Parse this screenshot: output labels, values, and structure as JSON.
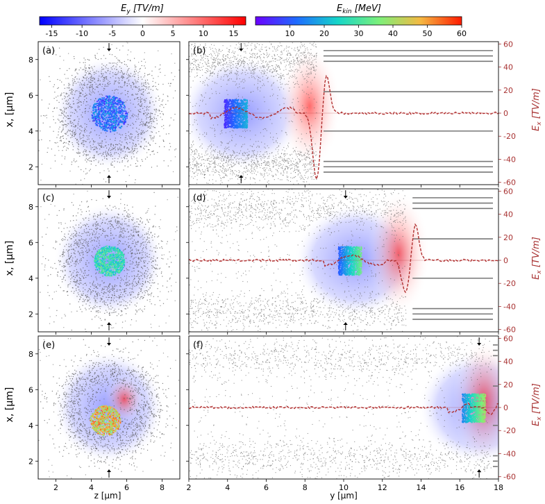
{
  "colorbars": {
    "ey": {
      "label": "E_y [TV/m]",
      "label_main": "E",
      "label_sub": "y",
      "label_unit": " [TV/m]",
      "ticks": [
        -15,
        -10,
        -5,
        0,
        5,
        10,
        15
      ],
      "range": [
        -17,
        17
      ],
      "colors": [
        "#0000ff",
        "#ffffff",
        "#ff0000"
      ]
    },
    "ekin": {
      "label": "E_kin [MeV]",
      "label_main": "E",
      "label_sub": "kin",
      "label_unit": " [MeV]",
      "ticks": [
        10,
        20,
        30,
        40,
        50,
        60
      ],
      "range": [
        0,
        60
      ],
      "colors": [
        "#6a00ff",
        "#1e6cff",
        "#16d6c8",
        "#7cf07a",
        "#f5b942",
        "#ff1a00"
      ]
    }
  },
  "axes_labels": {
    "left_y": "x, [μm]",
    "left_x": "z [μm]",
    "right_x": "y [μm]",
    "right_y2_main": "E",
    "right_y2_sub": "x",
    "right_y2_unit": " [TV/m]"
  },
  "chart_data": [
    {
      "panel": "a",
      "label": "(a)",
      "type": "scatter",
      "xlim": [
        1,
        9
      ],
      "ylim": [
        1,
        9
      ],
      "xticks": [
        2,
        4,
        6,
        8
      ],
      "yticks": [
        2,
        4,
        6,
        8
      ],
      "ring_center": [
        5,
        5
      ],
      "core_energy_MeV": [
        5,
        20
      ],
      "arrow_x": 5
    },
    {
      "panel": "b",
      "label": "(b)",
      "type": "line",
      "xlim": [
        2,
        18
      ],
      "ylim": [
        1,
        9
      ],
      "y2lim": [
        -62,
        62
      ],
      "xticks": [
        2,
        4,
        6,
        8,
        10,
        12,
        14,
        16,
        18
      ],
      "yticks": [
        2,
        4,
        6,
        8
      ],
      "y2ticks": [
        -60,
        -40,
        -20,
        0,
        20,
        40,
        60
      ],
      "arrow_y": 4.7,
      "bunch_y": [
        3.8,
        5.0
      ],
      "wave_y": 8.6,
      "ex_peak": [
        -58,
        35
      ]
    },
    {
      "panel": "c",
      "label": "(c)",
      "type": "scatter",
      "xlim": [
        1,
        9
      ],
      "ylim": [
        1,
        9
      ],
      "xticks": [
        2,
        4,
        6,
        8
      ],
      "yticks": [
        2,
        4,
        6,
        8
      ],
      "ring_center": [
        5,
        5
      ],
      "core_energy_MeV": [
        20,
        35
      ],
      "arrow_x": 5
    },
    {
      "panel": "d",
      "label": "(d)",
      "type": "line",
      "xlim": [
        2,
        18
      ],
      "ylim": [
        1,
        9
      ],
      "y2lim": [
        -62,
        62
      ],
      "xticks": [
        2,
        4,
        6,
        8,
        10,
        12,
        14,
        16,
        18
      ],
      "yticks": [
        2,
        4,
        6,
        8
      ],
      "y2ticks": [
        -60,
        -40,
        -20,
        0,
        20,
        40,
        60
      ],
      "arrow_y": 10.1,
      "bunch_y": [
        9.7,
        10.9
      ],
      "wave_y": 13.2,
      "ex_peak": [
        -28,
        32
      ]
    },
    {
      "panel": "e",
      "label": "(e)",
      "type": "scatter",
      "xlim": [
        1,
        9
      ],
      "ylim": [
        1,
        9
      ],
      "xticks": [
        2,
        4,
        6,
        8
      ],
      "yticks": [
        2,
        4,
        6,
        8
      ],
      "ring_center": [
        5,
        5
      ],
      "core_energy_MeV": [
        35,
        55
      ],
      "arrow_x": 5
    },
    {
      "panel": "f",
      "label": "(f)",
      "type": "line",
      "xlim": [
        2,
        18
      ],
      "ylim": [
        1,
        9
      ],
      "y2lim": [
        -62,
        62
      ],
      "xticks": [
        2,
        4,
        6,
        8,
        10,
        12,
        14,
        16,
        18
      ],
      "yticks": [
        2,
        4,
        6,
        8
      ],
      "y2ticks": [
        -60,
        -40,
        -20,
        0,
        20,
        40,
        60
      ],
      "arrow_y": 17.0,
      "bunch_y": [
        16.1,
        17.3
      ],
      "wave_y": 17.6,
      "ex_peak": [
        -6,
        6
      ]
    }
  ]
}
